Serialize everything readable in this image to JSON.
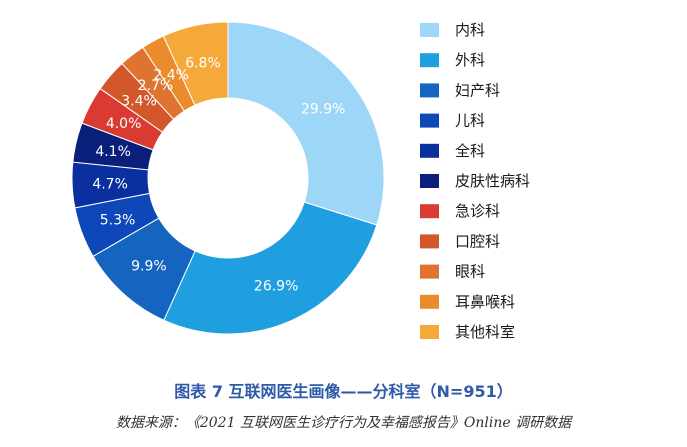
{
  "chart_data": {
    "type": "pie",
    "style": "donut",
    "categories": [
      "内科",
      "外科",
      "妇产科",
      "儿科",
      "全科",
      "皮肤性病科",
      "急诊科",
      "口腔科",
      "眼科",
      "耳鼻喉科",
      "其他科室"
    ],
    "values": [
      29.9,
      26.9,
      9.9,
      5.3,
      4.7,
      4.1,
      4.0,
      3.4,
      2.7,
      2.4,
      6.8
    ],
    "value_labels": [
      "29.9%",
      "26.9%",
      "9.9%",
      "5.3%",
      "4.7%",
      "4.1%",
      "4.0%",
      "3.4%",
      "2.7%",
      "2.4%",
      "6.8%"
    ],
    "colors": [
      "#9dd6f6",
      "#1f9fe0",
      "#1565c0",
      "#0d47b8",
      "#0a2f9e",
      "#0a1f7a",
      "#d93a32",
      "#d2572a",
      "#de7430",
      "#ea8c2c",
      "#f4a93a"
    ],
    "legend_position": "right",
    "start_angle": "top, clockwise"
  },
  "caption": "图表 7 互联网医生画像——分科室（N=951）",
  "source": "数据来源：《2021 互联网医生诊疗行为及幸福感报告》Online 调研数据"
}
